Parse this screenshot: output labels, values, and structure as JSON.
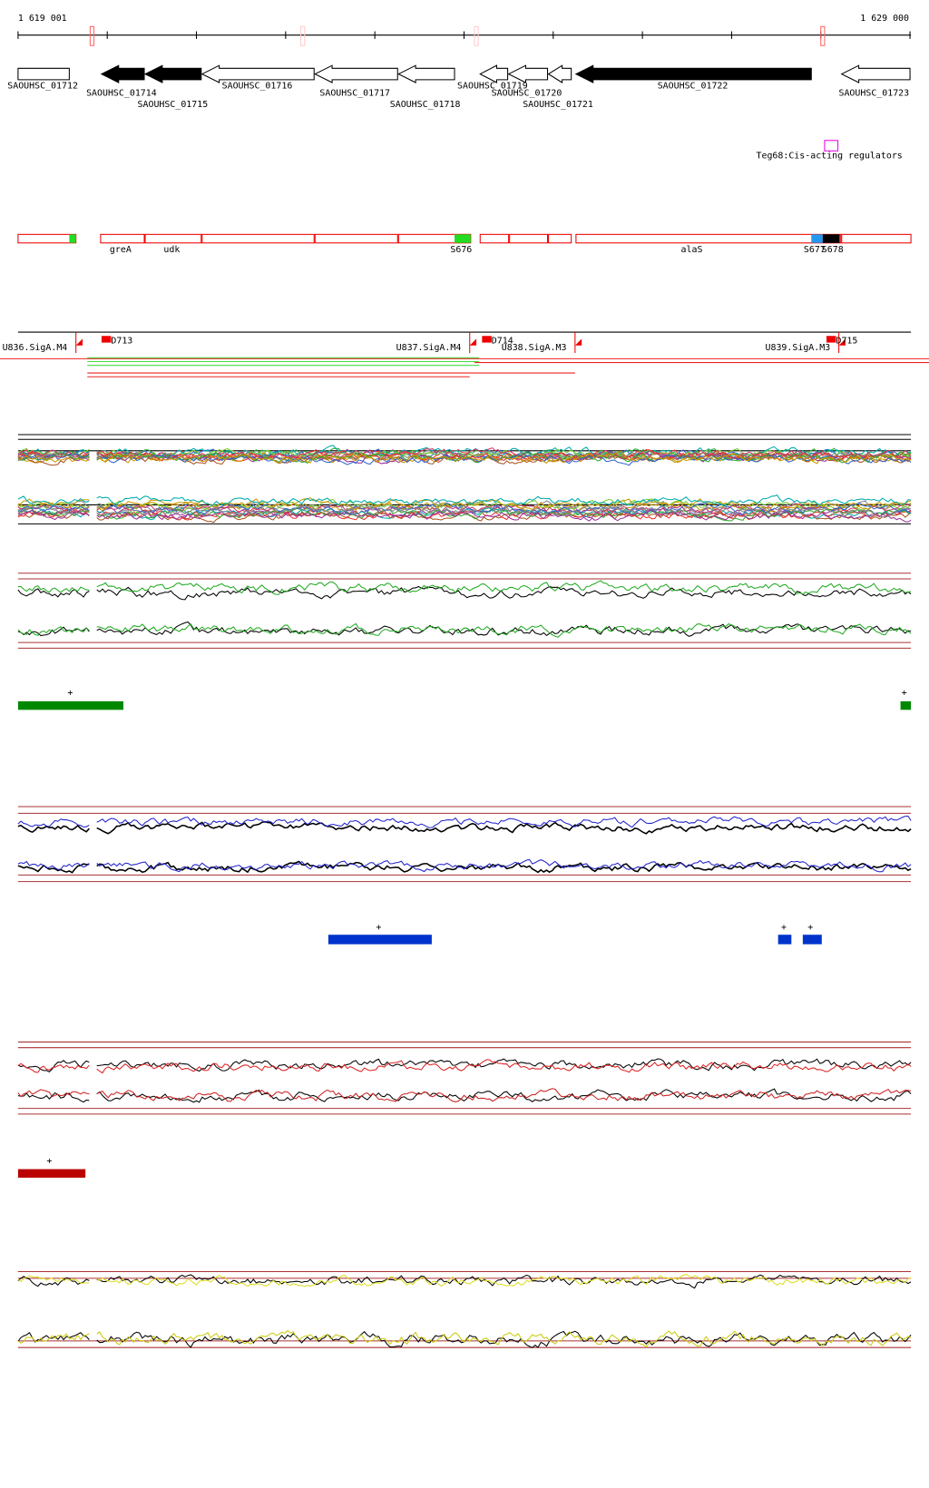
{
  "ruler": {
    "start": "1 619 001",
    "end": "1 629 000"
  },
  "genes": [
    "SAOUHSC_01712",
    "SAOUHSC_01714",
    "SAOUHSC_01715",
    "SAOUHSC_01716",
    "SAOUHSC_01717",
    "SAOUHSC_01718",
    "SAOUHSC_01719",
    "SAOUHSC_01720",
    "SAOUHSC_01721",
    "SAOUHSC_01722",
    "SAOUHSC_01723"
  ],
  "regulator": "Teg68:Cis-acting regulators",
  "features": [
    "greA",
    "udk",
    "S676",
    "alaS",
    "S677",
    "S678"
  ],
  "promoters": [
    "U836.SigA.M4",
    "U837.SigA.M4",
    "U838.SigA.M3",
    "U839.SigA.M3"
  ],
  "terminators": [
    "D713",
    "D714",
    "D715"
  ],
  "peak_mark": "+"
}
